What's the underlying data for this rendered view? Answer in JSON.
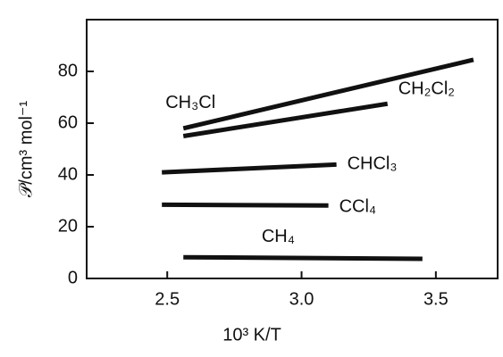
{
  "chart_data": {
    "type": "line",
    "x_label": "10³ K/T",
    "y_label": "𝒫/cm³ mol⁻¹",
    "xlim": [
      2.2,
      3.73
    ],
    "ylim": [
      0,
      100
    ],
    "xticks": [
      2.5,
      {
        "value": 3,
        "label": "3.0"
      },
      3.5
    ],
    "yticks": [
      0,
      20,
      40,
      60,
      80
    ],
    "grid": false,
    "series": [
      {
        "name": "CH₃Cl",
        "color": "#111111",
        "x": [
          2.56,
          3.64
        ],
        "values": [
          58,
          84.5
        ]
      },
      {
        "name": "CH₂Cl₂",
        "color": "#111111",
        "x": [
          2.56,
          3.32
        ],
        "values": [
          55,
          67.5
        ]
      },
      {
        "name": "CHCl₃",
        "color": "#111111",
        "x": [
          2.48,
          3.13
        ],
        "values": [
          41,
          44
        ]
      },
      {
        "name": "CCl₄",
        "color": "#111111",
        "x": [
          2.48,
          3.1
        ],
        "values": [
          28.5,
          28.2
        ]
      },
      {
        "name": "CH₄",
        "color": "#111111",
        "x": [
          2.56,
          3.45
        ],
        "values": [
          8.2,
          7.6
        ]
      }
    ]
  }
}
